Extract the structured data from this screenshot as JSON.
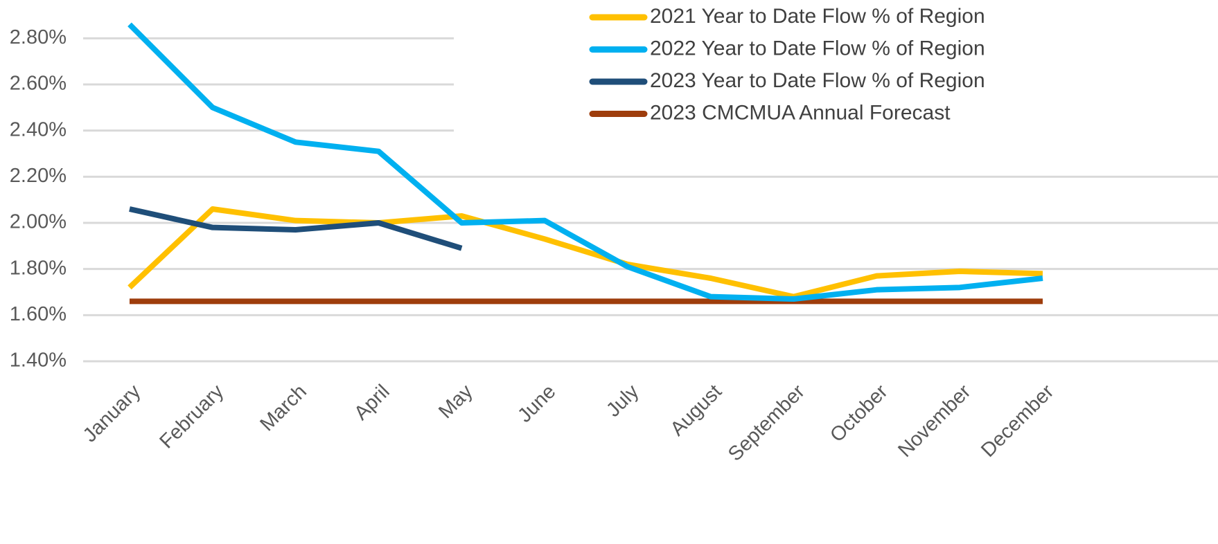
{
  "chart_data": {
    "type": "line",
    "categories": [
      "January",
      "February",
      "March",
      "April",
      "May",
      "June",
      "July",
      "August",
      "September",
      "October",
      "November",
      "December"
    ],
    "series": [
      {
        "name": "2021 Year to Date Flow % of Region",
        "color": "#FFC000",
        "values": [
          1.72,
          2.06,
          2.01,
          2.0,
          2.03,
          1.93,
          1.82,
          1.76,
          1.68,
          1.77,
          1.79,
          1.78
        ]
      },
      {
        "name": "2022 Year to Date Flow % of Region",
        "color": "#00B0F0",
        "values": [
          2.86,
          2.5,
          2.35,
          2.31,
          2.0,
          2.01,
          1.81,
          1.68,
          1.67,
          1.71,
          1.72,
          1.76
        ]
      },
      {
        "name": "2023 Year to Date Flow % of Region",
        "color": "#1F4E79",
        "values": [
          2.06,
          1.98,
          1.97,
          2.0,
          1.89,
          null,
          null,
          null,
          null,
          null,
          null,
          null
        ]
      },
      {
        "name": "2023 CMCMUA Annual Forecast",
        "color": "#9E3D0C",
        "values": [
          1.66,
          1.66,
          1.66,
          1.66,
          1.66,
          1.66,
          1.66,
          1.66,
          1.66,
          1.66,
          1.66,
          1.66
        ]
      }
    ],
    "ylim": [
      1.4,
      2.9
    ],
    "yticks": [
      {
        "value": 1.4,
        "label": "1.40%"
      },
      {
        "value": 1.6,
        "label": "1.60%"
      },
      {
        "value": 1.8,
        "label": "1.80%"
      },
      {
        "value": 2.0,
        "label": "2.00%"
      },
      {
        "value": 2.2,
        "label": "2.20%"
      },
      {
        "value": 2.4,
        "label": "2.40%"
      },
      {
        "value": 2.6,
        "label": "2.60%"
      },
      {
        "value": 2.8,
        "label": "2.80%"
      }
    ],
    "grid": true,
    "legend": "upper right"
  }
}
